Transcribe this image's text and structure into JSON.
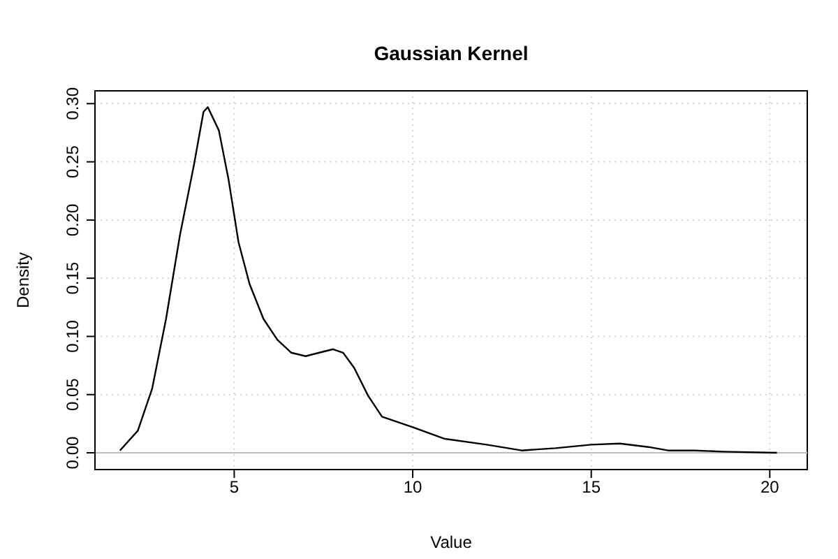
{
  "chart_data": {
    "type": "line",
    "title": "Gaussian Kernel",
    "xlabel": "Value",
    "ylabel": "Density",
    "series": [
      {
        "color": "#000000",
        "x": [
          1.8,
          2.3,
          2.7,
          3.09,
          3.48,
          3.87,
          4.14,
          4.26,
          4.57,
          4.84,
          5.12,
          5.43,
          5.82,
          6.21,
          6.6,
          7.0,
          7.38,
          7.77,
          8.05,
          8.36,
          8.75,
          9.14,
          10.0,
          10.9,
          12.07,
          13.05,
          14.0,
          15.0,
          15.8,
          16.6,
          17.15,
          17.9,
          18.7,
          20.2
        ],
        "values": [
          0.002,
          0.019,
          0.055,
          0.115,
          0.187,
          0.247,
          0.293,
          0.297,
          0.277,
          0.235,
          0.181,
          0.145,
          0.115,
          0.097,
          0.086,
          0.083,
          0.086,
          0.089,
          0.086,
          0.073,
          0.049,
          0.031,
          0.022,
          0.012,
          0.007,
          0.002,
          0.004,
          0.007,
          0.008,
          0.005,
          0.002,
          0.002,
          0.001,
          0.0
        ]
      }
    ],
    "xlim": [
      1.1,
      21.05
    ],
    "ylim": [
      -0.0144,
      0.311
    ],
    "xticks": [
      5,
      10,
      15,
      20
    ],
    "yticks": [
      {
        "value": 0,
        "label": "0.00"
      },
      {
        "value": 0.05,
        "label": "0.05"
      },
      {
        "value": 0.1,
        "label": "0.10"
      },
      {
        "value": 0.15,
        "label": "0.15"
      },
      {
        "value": 0.2,
        "label": "0.20"
      },
      {
        "value": 0.25,
        "label": "0.25"
      },
      {
        "value": 0.3,
        "label": "0.30"
      }
    ],
    "grid": true,
    "line_style": "solid",
    "ref_lines": [
      {
        "axis": "y",
        "value": 0,
        "color": "#bebebe"
      }
    ]
  }
}
